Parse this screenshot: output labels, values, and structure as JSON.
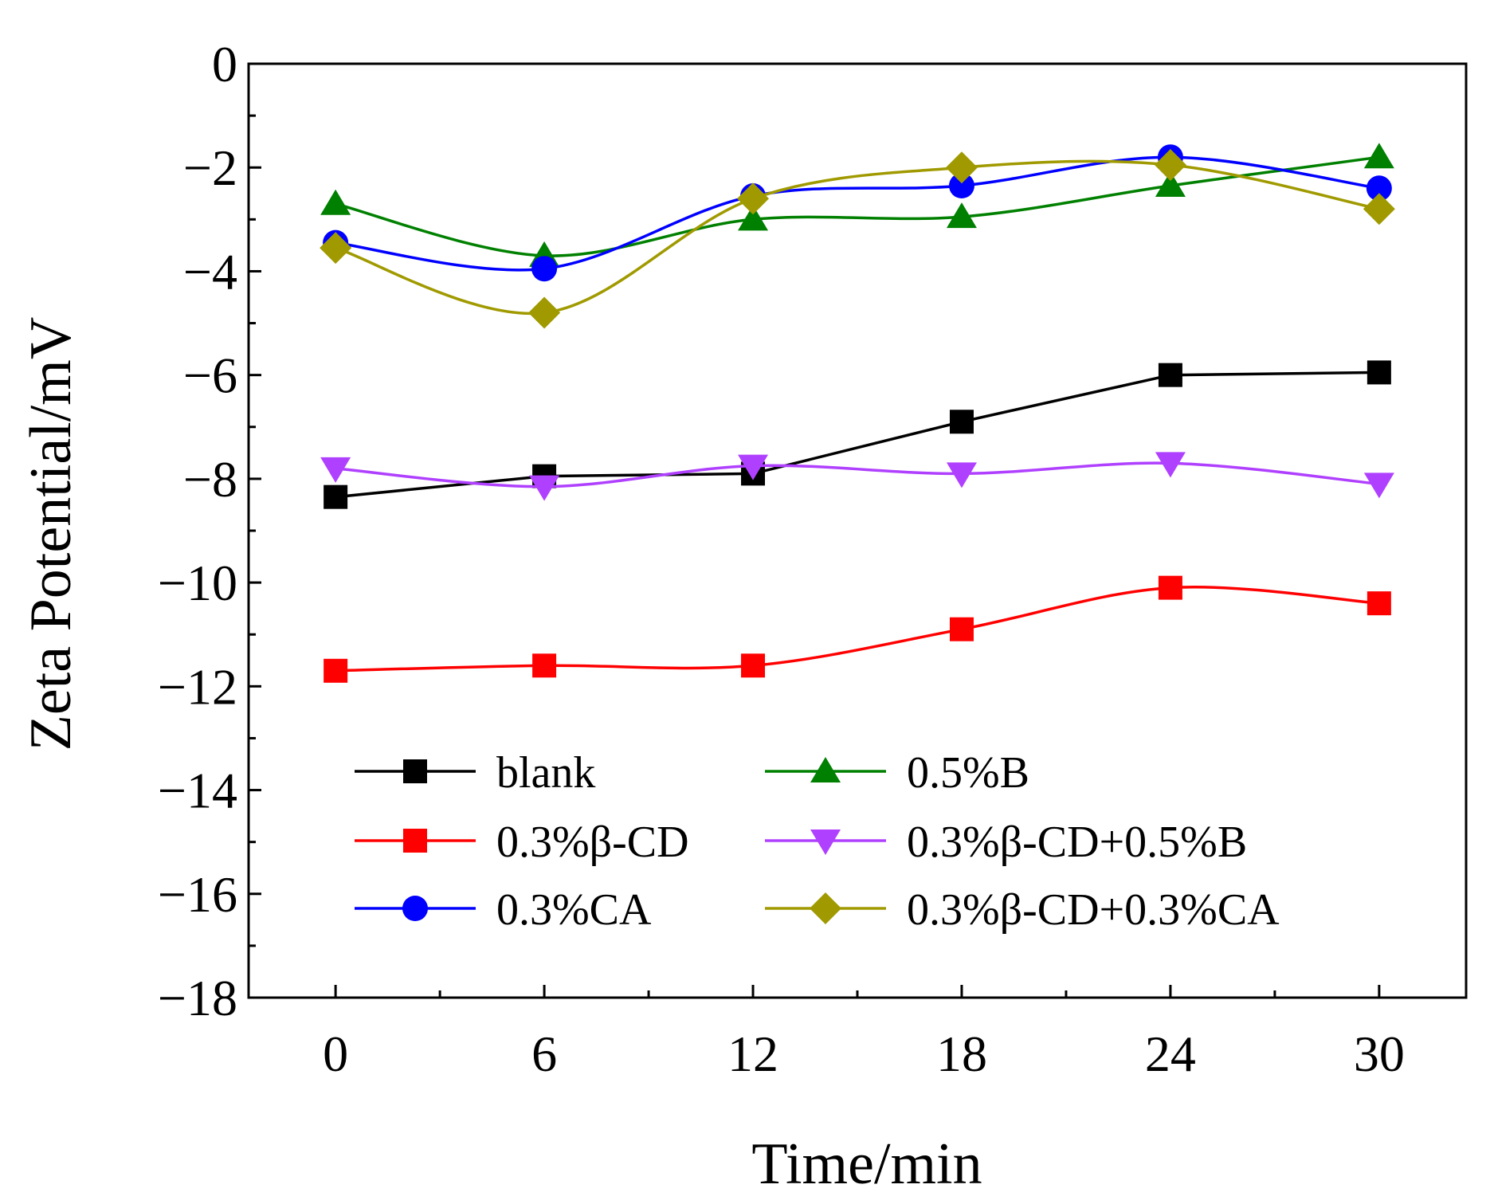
{
  "chart_data": {
    "type": "line",
    "title": "",
    "xlabel": "Time/min",
    "ylabel": "Zeta Potential/mV",
    "x": [
      0,
      6,
      12,
      18,
      24,
      30
    ],
    "x_ticks": [
      0,
      6,
      12,
      18,
      24,
      30
    ],
    "x_tick_labels": [
      "0",
      "6",
      "12",
      "18",
      "24",
      "30"
    ],
    "xlim": [
      -2.5,
      32.5
    ],
    "ylim": [
      -18,
      0
    ],
    "y_ticks": [
      0,
      -2,
      -4,
      -6,
      -8,
      -10,
      -12,
      -14,
      -16,
      -18
    ],
    "y_tick_labels": [
      "0",
      "−2",
      "−4",
      "−6",
      "−8",
      "−10",
      "−12",
      "−14",
      "−16",
      "−18"
    ],
    "grid": false,
    "legend_position": "bottom-left",
    "series": [
      {
        "name": "blank",
        "color": "#000000",
        "marker": "square",
        "smooth": false,
        "values": [
          -8.35,
          -7.95,
          -7.9,
          -6.9,
          -6.0,
          -5.95
        ]
      },
      {
        "name": "0.5%B",
        "color": "#008000",
        "marker": "triangle-up",
        "smooth": true,
        "values": [
          -2.7,
          -3.7,
          -3.0,
          -2.95,
          -2.35,
          -1.8
        ]
      },
      {
        "name": "0.3%β-CD",
        "color": "#ff0000",
        "marker": "square",
        "smooth": true,
        "values": [
          -11.7,
          -11.6,
          -11.6,
          -10.9,
          -10.1,
          -10.4
        ]
      },
      {
        "name": "0.3%β-CD+0.5%B",
        "color": "#b040ff",
        "marker": "triangle-down",
        "smooth": true,
        "values": [
          -7.8,
          -8.15,
          -7.75,
          -7.9,
          -7.7,
          -8.1
        ]
      },
      {
        "name": "0.3%CA",
        "color": "#0000ff",
        "marker": "circle",
        "smooth": true,
        "values": [
          -3.45,
          -3.95,
          -2.55,
          -2.35,
          -1.8,
          -2.4
        ]
      },
      {
        "name": "0.3%β-CD+0.3%CA",
        "color": "#a09a00",
        "marker": "diamond",
        "smooth": true,
        "values": [
          -3.55,
          -4.8,
          -2.6,
          -2.0,
          -1.95,
          -2.8
        ]
      }
    ]
  }
}
